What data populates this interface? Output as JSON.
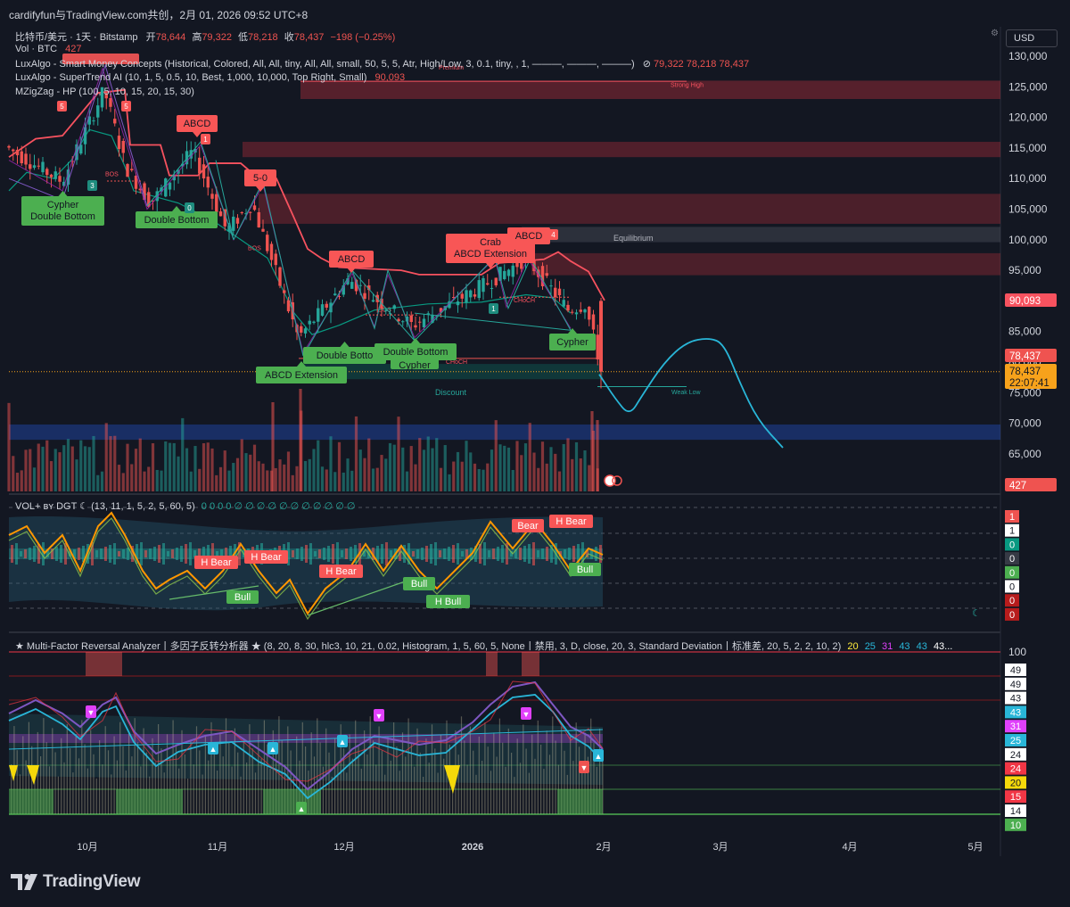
{
  "header": {
    "title": "cardifyfun与TradingView.com共创，2月 01, 2026 09:52 UTC+8"
  },
  "main_legend": {
    "symbol": "比特币/美元 · 1天 · Bitstamp",
    "open_label": "开",
    "open": "78,644",
    "high_label": "高",
    "high": "79,322",
    "low_label": "低",
    "low": "78,218",
    "close_label": "收",
    "close": "78,437",
    "change": "−198 (−0.25%)",
    "vol_label": "Vol · BTC",
    "vol_value": "427",
    "smc_label": "LuxAlgo - Smart Money Concepts (Historical, Colored, All, All, tiny, All, All, small, 50, 5, 5, Atr, High/Low, 3, 0.1, tiny, , 1, ———, ———, ———)",
    "smc_values": "79,322  78,218  78,437",
    "st_label": "LuxAlgo - SuperTrend AI (10, 1, 5, 0.5, 10, Best, 1,000, 10,000, Top Right, Small)",
    "st_value": "90,093",
    "zz_label": "MZigZag - HP (100, 5, 10, 15, 20, 15, 30)"
  },
  "currency_button": "USD",
  "price_axis": [
    "130,000",
    "125,000",
    "120,000",
    "115,000",
    "110,000",
    "105,000",
    "100,000",
    "95,000",
    "90,000",
    "85,000",
    "80,000",
    "75,000",
    "70,000",
    "65,000",
    "60,000"
  ],
  "price_badges": {
    "supertrend": "90,093",
    "last": "78,437",
    "close": "78,437",
    "countdown": "22:07:41",
    "volume": "427"
  },
  "time_axis": [
    "10月",
    "11月",
    "12月",
    "2026",
    "2月",
    "3月",
    "4月",
    "5月"
  ],
  "pattern_labels": {
    "cypher_db": "Cypher",
    "cypher_db2": "Double Bottom",
    "double_bottom_1": "Double Bottom",
    "abcd_1": "ABCD",
    "five_o": "5-0",
    "abcd_2": "ABCD",
    "double_bottom_2": "Double Botto",
    "double_bottom_3": "Double Bottom",
    "cypher_2": "Cypher",
    "abcd_ext": "ABCD Extension",
    "crab": "Crab",
    "abcd_ext2": "ABCD Extension",
    "abcd_3": "ABCD",
    "cypher_3": "Cypher"
  },
  "zone_labels": {
    "equilibrium": "Equilibrium",
    "discount": "Discount",
    "strong_high": "Strong High",
    "weak_low": "Weak Low",
    "premium": "Premium",
    "choch": "CHoCH",
    "bos": "BOS"
  },
  "vol_panel": {
    "legend": "VOL+ ʙʏ DGT ☾ (13, 11, 1, 5, 2, 5, 60, 5)",
    "legend_vals": "0  0  0  0  ∅  ∅  ∅  ∅  ∅  ∅  ∅  ∅  ∅  ∅  ∅",
    "labels": [
      "H Bear",
      "H Bear",
      "H Bear",
      "Bear",
      "H Bear",
      "Bull",
      "Bull",
      "H Bull",
      "Bull"
    ],
    "right_values": [
      "1",
      "1",
      "0",
      "0",
      "0",
      "0",
      "0",
      "0"
    ]
  },
  "mfra_panel": {
    "legend": "★ Multi-Factor Reversal Analyzer丨多因子反转分析器 ★ (8, 20, 8, 30, hlc3, 10, 21, 0.02, Histogram, 1, 5, 60, 5, None丨禁用, 3, D, close, 20, 3, Standard Deviation丨标准差, 20, 5, 2, 2, 10, 2)",
    "legend_vals": [
      "20",
      "25",
      "31",
      "43",
      "43",
      "43..."
    ],
    "axis_top": "100",
    "right_values": [
      "49",
      "49",
      "43",
      "43",
      "31",
      "25",
      "24",
      "24",
      "20",
      "15",
      "14",
      "10"
    ]
  },
  "colors": {
    "background": "#131722",
    "bull": "#26a69a",
    "bear": "#ef5350",
    "supertrend": "#f7525f",
    "projection": "#29b6d8",
    "label_green": "#4caf50",
    "label_red": "#f85656"
  },
  "chart_data": [
    {
      "type": "candlestick",
      "title": "比特币/美元 · 1天 · Bitstamp",
      "ylim": [
        60000,
        132000
      ],
      "x_ticks": [
        "10月",
        "11月",
        "12月",
        "2026",
        "2月",
        "3月",
        "4月",
        "5月"
      ],
      "last_close": 78437,
      "supertrend_level": 90093,
      "approx_close_path": [
        {
          "date": "2025-09-12",
          "price": 115500
        },
        {
          "date": "2025-09-26",
          "price": 109500
        },
        {
          "date": "2025-10-06",
          "price": 124500
        },
        {
          "date": "2025-10-11",
          "price": 112000
        },
        {
          "date": "2025-10-17",
          "price": 106000
        },
        {
          "date": "2025-10-27",
          "price": 114500
        },
        {
          "date": "2025-11-04",
          "price": 101500
        },
        {
          "date": "2025-11-10",
          "price": 106000
        },
        {
          "date": "2025-11-21",
          "price": 84000
        },
        {
          "date": "2025-12-03",
          "price": 93500
        },
        {
          "date": "2025-12-18",
          "price": 86000
        },
        {
          "date": "2026-01-05",
          "price": 93000
        },
        {
          "date": "2026-01-14",
          "price": 97000
        },
        {
          "date": "2026-01-24",
          "price": 88500
        },
        {
          "date": "2026-01-28",
          "price": 89500
        },
        {
          "date": "2026-02-01",
          "price": 78437
        }
      ],
      "projection": [
        {
          "date": "2026-02-01",
          "price": 78000
        },
        {
          "date": "2026-02-08",
          "price": 71000
        },
        {
          "date": "2026-02-22",
          "price": 83500
        },
        {
          "date": "2026-03-01",
          "price": 83000
        },
        {
          "date": "2026-03-16",
          "price": 66000
        }
      ]
    },
    {
      "type": "line",
      "title": "VOL+ ʙʏ DGT ☾",
      "ylim": [
        0,
        1
      ]
    },
    {
      "type": "line",
      "title": "Multi-Factor Reversal Analyzer",
      "ylim": [
        0,
        100
      ],
      "y_ticks": [
        100
      ]
    }
  ]
}
